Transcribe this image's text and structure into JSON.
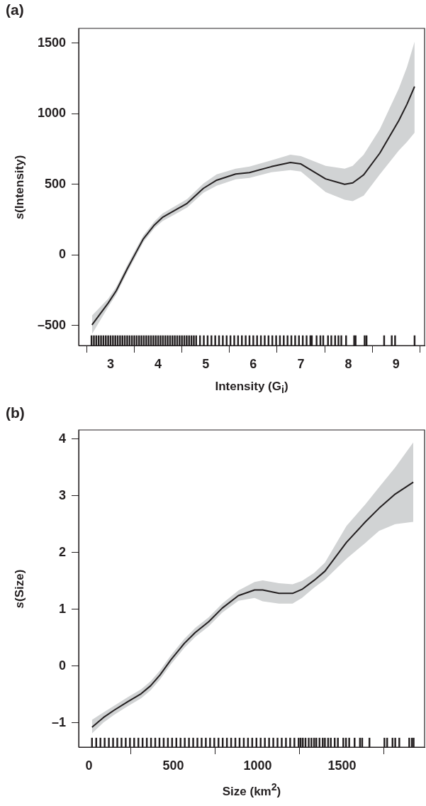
{
  "chart_data": [
    {
      "type": "line",
      "title": "(a)",
      "xlabel": "Intensity (G$_{i}$)",
      "ylabel": "s(Intensity)",
      "xlim": [
        2.33,
        9.6
      ],
      "ylim": [
        -642,
        1604
      ],
      "xticks": [
        3,
        4,
        5,
        6,
        7,
        8,
        9
      ],
      "yticks": [
        {
          "value": -500,
          "label": "–500"
        },
        0,
        500,
        1000,
        1500
      ],
      "grid": false,
      "legend": false,
      "line_style": "solid",
      "series": [
        {
          "marker": "none",
          "color": "#231f20",
          "x": [
            2.61,
            2.95,
            3.12,
            3.35,
            3.52,
            3.69,
            3.92,
            4.09,
            4.61,
            4.95,
            5.23,
            5.63,
            5.92,
            6.38,
            6.78,
            7.0,
            7.52,
            7.92,
            8.09,
            8.32,
            8.66,
            9.06,
            9.23,
            9.39
          ],
          "values": [
            -496,
            -341,
            -254,
            -99,
            8,
            114,
            211,
            265,
            365,
            471,
            529,
            573,
            583,
            625,
            654,
            644,
            538,
            500,
            510,
            567,
            721,
            952,
            1067,
            1192
          ],
          "lower": [
            -560,
            -370,
            -280,
            -125,
            -18,
            90,
            188,
            238,
            335,
            440,
            490,
            535,
            545,
            585,
            600,
            590,
            445,
            390,
            380,
            420,
            570,
            740,
            800,
            865
          ],
          "upper": [
            -430,
            -310,
            -228,
            -73,
            34,
            138,
            236,
            292,
            395,
            505,
            570,
            610,
            625,
            670,
            710,
            700,
            630,
            610,
            630,
            710,
            890,
            1180,
            1330,
            1510
          ]
        },
        {
          "type": "bar",
          "color": "#231f20",
          "x": [
            2.6,
            2.65,
            2.7,
            2.75,
            2.8,
            2.85,
            2.9,
            2.95,
            3.0,
            3.05,
            3.1,
            3.15,
            3.2,
            3.25,
            3.3,
            3.35,
            3.4,
            3.45,
            3.5,
            3.55,
            3.6,
            3.65,
            3.7,
            3.75,
            3.8,
            3.85,
            3.9,
            3.95,
            4.0,
            4.05,
            4.1,
            4.15,
            4.2,
            4.25,
            4.3,
            4.35,
            4.4,
            4.45,
            4.5,
            4.55,
            4.6,
            4.65,
            4.7,
            4.75,
            4.8,
            4.88,
            4.96,
            5.04,
            5.12,
            5.2,
            5.28,
            5.36,
            5.44,
            5.52,
            5.6,
            5.68,
            5.76,
            5.84,
            5.92,
            6.0,
            6.08,
            6.16,
            6.24,
            6.32,
            6.4,
            6.48,
            6.56,
            6.64,
            6.72,
            6.8,
            6.88,
            6.96,
            7.04,
            7.12,
            7.2,
            7.23,
            7.33,
            7.41,
            7.47,
            7.57,
            7.64,
            7.72,
            7.79,
            7.85,
            7.95,
            8.12,
            8.15,
            8.34,
            8.38,
            8.75,
            8.91,
            8.98,
            9.39
          ],
          "base": [
            -642,
            -642,
            -642,
            -642,
            -642,
            -642,
            -642,
            -642,
            -642,
            -642,
            -642,
            -642,
            -642,
            -642,
            -642,
            -642,
            -642,
            -642,
            -642,
            -642,
            -642,
            -642,
            -642,
            -642,
            -642,
            -642,
            -642,
            -642,
            -642,
            -642,
            -642,
            -642,
            -642,
            -642,
            -642,
            -642,
            -642,
            -642,
            -642,
            -642,
            -642,
            -642,
            -642,
            -642,
            -642,
            -642,
            -642,
            -642,
            -642,
            -642,
            -642,
            -642,
            -642,
            -642,
            -642,
            -642,
            -642,
            -642,
            -642,
            -642,
            -642,
            -642,
            -642,
            -642,
            -642,
            -642,
            -642,
            -642,
            -642,
            -642,
            -642,
            -642,
            -642,
            -642,
            -642,
            -642,
            -642,
            -642,
            -642,
            -642,
            -642,
            -642,
            -642,
            -642,
            -642,
            -642,
            -642,
            -642,
            -642,
            -642,
            -642,
            -642,
            -642
          ],
          "values": [
            70,
            70,
            70,
            70,
            70,
            70,
            70,
            70,
            70,
            70,
            70,
            70,
            70,
            70,
            70,
            70,
            70,
            70,
            70,
            70,
            70,
            70,
            70,
            70,
            70,
            70,
            70,
            70,
            70,
            70,
            70,
            70,
            70,
            70,
            70,
            70,
            70,
            70,
            70,
            70,
            70,
            70,
            70,
            70,
            70,
            70,
            70,
            70,
            70,
            70,
            70,
            70,
            70,
            70,
            70,
            70,
            70,
            70,
            70,
            70,
            70,
            70,
            70,
            70,
            70,
            70,
            70,
            70,
            70,
            70,
            70,
            70,
            70,
            70,
            70,
            70,
            70,
            70,
            70,
            70,
            70,
            70,
            70,
            70,
            70,
            70,
            70,
            70,
            70,
            70,
            70,
            70,
            70
          ]
        }
      ]
    },
    {
      "type": "line",
      "title": "(b)",
      "xlabel": "Size (km$^{2}$)",
      "ylabel": "s(Size)",
      "xlim": [
        -61,
        1990
      ],
      "ylim": [
        -1.43,
        4.16
      ],
      "xticks": [
        0,
        500,
        1000,
        1500
      ],
      "yticks": [
        {
          "value": -1,
          "label": "–1"
        },
        0,
        1,
        2,
        3,
        4
      ],
      "grid": false,
      "legend": false,
      "line_style": "solid",
      "series": [
        {
          "marker": "none",
          "color": "#231f20",
          "x": [
            18,
            85,
            149,
            229,
            309,
            365,
            421,
            486,
            566,
            630,
            710,
            790,
            886,
            982,
            1030,
            1127,
            1207,
            1263,
            1335,
            1399,
            1527,
            1639,
            1720,
            1816,
            1923
          ],
          "values": [
            -1.08,
            -0.91,
            -0.78,
            -0.63,
            -0.49,
            -0.35,
            -0.16,
            0.11,
            0.4,
            0.59,
            0.78,
            1.02,
            1.24,
            1.34,
            1.34,
            1.28,
            1.28,
            1.35,
            1.51,
            1.67,
            2.18,
            2.54,
            2.78,
            3.03,
            3.24
          ],
          "lower": [
            -1.19,
            -1.0,
            -0.86,
            -0.71,
            -0.57,
            -0.43,
            -0.24,
            0.03,
            0.32,
            0.51,
            0.7,
            0.94,
            1.15,
            1.2,
            1.14,
            1.1,
            1.1,
            1.2,
            1.38,
            1.52,
            1.89,
            2.17,
            2.38,
            2.5,
            2.54
          ],
          "upper": [
            -0.95,
            -0.82,
            -0.7,
            -0.55,
            -0.41,
            -0.27,
            -0.08,
            0.19,
            0.48,
            0.67,
            0.86,
            1.1,
            1.33,
            1.48,
            1.51,
            1.46,
            1.44,
            1.5,
            1.64,
            1.82,
            2.47,
            2.85,
            3.15,
            3.5,
            3.94
          ]
        },
        {
          "type": "bar",
          "color": "#231f20",
          "x": [
            18,
            43,
            68,
            93,
            118,
            143,
            168,
            193,
            218,
            243,
            268,
            293,
            318,
            343,
            368,
            393,
            418,
            443,
            468,
            493,
            518,
            543,
            568,
            593,
            618,
            643,
            668,
            693,
            718,
            743,
            768,
            793,
            818,
            843,
            868,
            893,
            918,
            943,
            968,
            993,
            1018,
            1043,
            1068,
            1093,
            1118,
            1143,
            1168,
            1193,
            1218,
            1243,
            1255,
            1268,
            1284,
            1303,
            1319,
            1335,
            1348,
            1367,
            1386,
            1399,
            1418,
            1434,
            1457,
            1476,
            1508,
            1524,
            1543,
            1575,
            1607,
            1620,
            1663,
            1752,
            1768,
            1800,
            1816,
            1840,
            1899,
            1915,
            1925
          ],
          "base": [
            -1.43,
            -1.43,
            -1.43,
            -1.43,
            -1.43,
            -1.43,
            -1.43,
            -1.43,
            -1.43,
            -1.43,
            -1.43,
            -1.43,
            -1.43,
            -1.43,
            -1.43,
            -1.43,
            -1.43,
            -1.43,
            -1.43,
            -1.43,
            -1.43,
            -1.43,
            -1.43,
            -1.43,
            -1.43,
            -1.43,
            -1.43,
            -1.43,
            -1.43,
            -1.43,
            -1.43,
            -1.43,
            -1.43,
            -1.43,
            -1.43,
            -1.43,
            -1.43,
            -1.43,
            -1.43,
            -1.43,
            -1.43,
            -1.43,
            -1.43,
            -1.43,
            -1.43,
            -1.43,
            -1.43,
            -1.43,
            -1.43,
            -1.43,
            -1.43,
            -1.43,
            -1.43,
            -1.43,
            -1.43,
            -1.43,
            -1.43,
            -1.43,
            -1.43,
            -1.43,
            -1.43,
            -1.43,
            -1.43,
            -1.43,
            -1.43,
            -1.43,
            -1.43,
            -1.43,
            -1.43,
            -1.43,
            -1.43,
            -1.43,
            -1.43,
            -1.43,
            -1.43,
            -1.43,
            -1.43,
            -1.43,
            -1.43
          ],
          "values": [
            0.16,
            0.16,
            0.16,
            0.16,
            0.16,
            0.16,
            0.16,
            0.16,
            0.16,
            0.16,
            0.16,
            0.16,
            0.16,
            0.16,
            0.16,
            0.16,
            0.16,
            0.16,
            0.16,
            0.16,
            0.16,
            0.16,
            0.16,
            0.16,
            0.16,
            0.16,
            0.16,
            0.16,
            0.16,
            0.16,
            0.16,
            0.16,
            0.16,
            0.16,
            0.16,
            0.16,
            0.16,
            0.16,
            0.16,
            0.16,
            0.16,
            0.16,
            0.16,
            0.16,
            0.16,
            0.16,
            0.16,
            0.16,
            0.16,
            0.16,
            0.16,
            0.16,
            0.16,
            0.16,
            0.16,
            0.16,
            0.16,
            0.16,
            0.16,
            0.16,
            0.16,
            0.16,
            0.16,
            0.16,
            0.16,
            0.16,
            0.16,
            0.16,
            0.16,
            0.16,
            0.16,
            0.16,
            0.16,
            0.16,
            0.16,
            0.16,
            0.16,
            0.16,
            0.16
          ]
        }
      ]
    }
  ]
}
